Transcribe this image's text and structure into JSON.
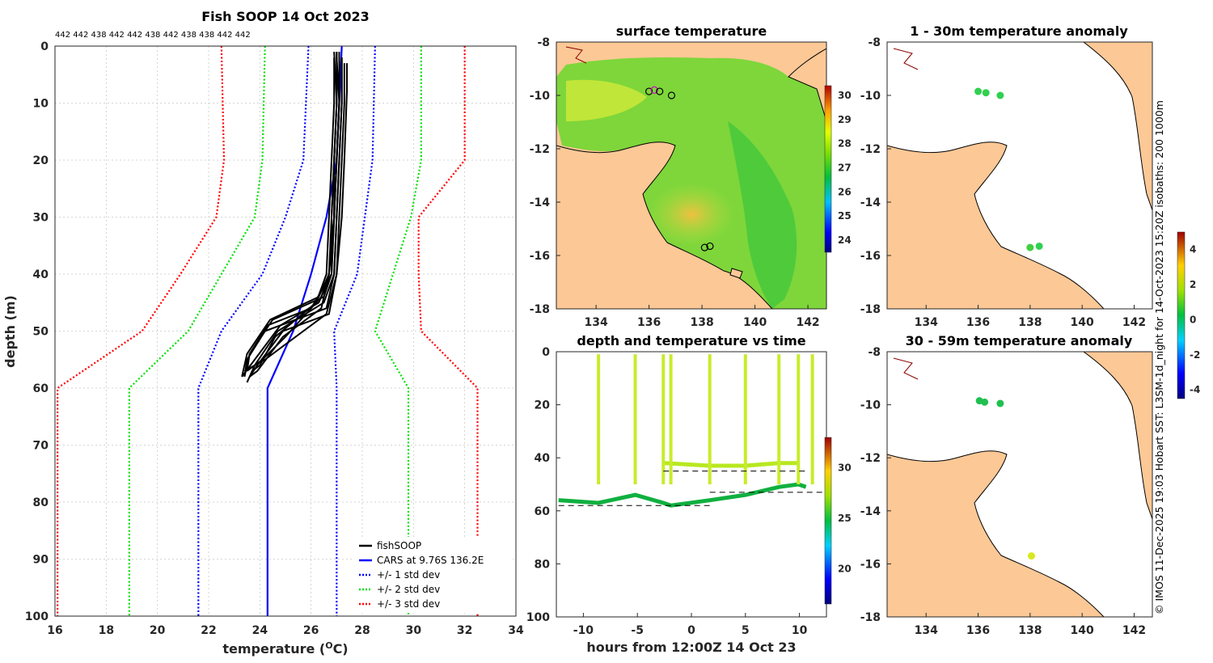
{
  "chart_data": [
    {
      "type": "line",
      "title": "Fish SOOP 14 Oct 2023",
      "vessel_ids": "442 442 438 442 442 438 442 438 438 442 442",
      "xlabel": "temperature (",
      "xlabel_unit": "O",
      "xlabel_tail": "C)",
      "ylabel": "depth (m)",
      "xlim": [
        16,
        34
      ],
      "ylim": [
        0,
        100
      ],
      "y_reversed": true,
      "xticks": [
        "16",
        "18",
        "20",
        "22",
        "24",
        "26",
        "28",
        "30",
        "32",
        "34"
      ],
      "yticks": [
        "0",
        "10",
        "20",
        "30",
        "40",
        "50",
        "60",
        "70",
        "80",
        "90",
        "100"
      ],
      "legend": [
        "fishSOOP",
        "CARS at 9.76S 136.2E",
        "+/- 1 std dev",
        "+/- 2 std dev",
        "+/- 3 std dev"
      ],
      "series": [
        {
          "name": "CARS at 9.76S 136.2E",
          "color": "#0000ff",
          "x": [
            27.2,
            27.0,
            26.6,
            26.0,
            25.3,
            24.3,
            24.3
          ],
          "y": [
            0,
            20,
            30,
            40,
            50,
            60,
            100
          ]
        },
        {
          "name": "-1 std dev",
          "color": "#0000ff",
          "dotted": true,
          "x": [
            25.9,
            25.7,
            25.0,
            24.1,
            22.5,
            21.6,
            21.6
          ],
          "y": [
            0,
            20,
            30,
            40,
            50,
            60,
            100
          ]
        },
        {
          "name": "+1 std dev",
          "color": "#0000ff",
          "dotted": true,
          "x": [
            28.5,
            28.4,
            28.1,
            27.8,
            26.9,
            27.0,
            27.0
          ],
          "y": [
            0,
            20,
            30,
            40,
            50,
            60,
            100
          ]
        },
        {
          "name": "-2 std dev",
          "color": "#00e000",
          "dotted": true,
          "x": [
            24.2,
            24.1,
            23.8,
            22.5,
            21.2,
            18.9,
            18.9
          ],
          "y": [
            0,
            20,
            30,
            40,
            50,
            60,
            100
          ]
        },
        {
          "name": "+2 std dev",
          "color": "#00e000",
          "dotted": true,
          "x": [
            30.3,
            30.3,
            29.9,
            29.2,
            28.5,
            29.8,
            29.8
          ],
          "y": [
            0,
            20,
            30,
            40,
            50,
            60,
            100
          ]
        },
        {
          "name": "-3 std dev",
          "color": "#ff0000",
          "dotted": true,
          "x": [
            22.5,
            22.6,
            22.3,
            20.9,
            19.4,
            16.1,
            16.1
          ],
          "y": [
            0,
            20,
            30,
            40,
            50,
            60,
            100
          ]
        },
        {
          "name": "+3 std dev",
          "color": "#ff0000",
          "dotted": true,
          "x": [
            32.0,
            32.0,
            30.2,
            30.2,
            30.3,
            32.5,
            32.5
          ],
          "y": [
            0,
            20,
            30,
            40,
            50,
            60,
            100
          ]
        }
      ],
      "fishsoop_profiles": [
        {
          "x": [
            27.0,
            27.0,
            26.9,
            26.8,
            26.8,
            26.5,
            24.5,
            23.6,
            23.5
          ],
          "y": [
            1,
            10,
            20,
            30,
            40,
            44,
            48,
            54,
            57
          ]
        },
        {
          "x": [
            27.1,
            27.1,
            27.0,
            26.9,
            26.8,
            26.3,
            24.8,
            23.8,
            23.3
          ],
          "y": [
            1,
            10,
            20,
            30,
            40,
            45,
            49,
            55,
            58
          ]
        },
        {
          "x": [
            27.2,
            27.2,
            27.1,
            27.0,
            26.9,
            26.6,
            24.2,
            23.5,
            23.4
          ],
          "y": [
            2,
            10,
            20,
            30,
            40,
            46,
            50,
            55,
            58
          ]
        },
        {
          "x": [
            26.9,
            26.9,
            26.8,
            26.7,
            26.6,
            26.2,
            24.6,
            24.0,
            23.7
          ],
          "y": [
            2,
            10,
            20,
            30,
            40,
            45,
            51,
            56,
            57
          ]
        },
        {
          "x": [
            27.3,
            27.3,
            27.2,
            27.1,
            27.0,
            26.7,
            24.9,
            23.9,
            23.6
          ],
          "y": [
            3,
            10,
            20,
            30,
            40,
            47,
            50,
            56,
            58
          ]
        },
        {
          "x": [
            27.0,
            27.0,
            26.9,
            26.9,
            26.7,
            26.4,
            25.0,
            24.1,
            23.5
          ],
          "y": [
            1,
            10,
            20,
            30,
            40,
            44,
            51,
            55,
            57
          ]
        },
        {
          "x": [
            27.1,
            27.1,
            27.0,
            26.9,
            26.8,
            26.0,
            24.3,
            23.6,
            23.4
          ],
          "y": [
            1,
            10,
            20,
            30,
            40,
            46,
            49,
            54,
            58
          ]
        },
        {
          "x": [
            27.2,
            27.2,
            27.1,
            27.0,
            26.9,
            26.5,
            24.7,
            23.8,
            23.5
          ],
          "y": [
            2,
            10,
            20,
            30,
            40,
            45,
            50,
            56,
            59
          ]
        },
        {
          "x": [
            27.4,
            27.4,
            27.3,
            27.2,
            27.0,
            26.6,
            25.1,
            24.2,
            23.4
          ],
          "y": [
            3,
            8,
            20,
            30,
            40,
            47,
            52,
            55,
            57
          ]
        },
        {
          "x": [
            26.9,
            27.0,
            26.9,
            26.8,
            26.7,
            26.3,
            24.4,
            23.5,
            23.3
          ],
          "y": [
            1,
            10,
            20,
            30,
            40,
            44,
            48,
            54,
            58
          ]
        },
        {
          "x": [
            27.0,
            27.1,
            27.0,
            26.9,
            26.7,
            26.4,
            24.9,
            23.9,
            23.6
          ],
          "y": [
            2,
            10,
            20,
            30,
            40,
            46,
            51,
            57,
            58
          ]
        }
      ]
    },
    {
      "type": "heatmap",
      "title": "surface temperature",
      "xticks": [
        "134",
        "136",
        "138",
        "140",
        "142"
      ],
      "yticks": [
        "-8",
        "-10",
        "-12",
        "-14",
        "-16",
        "-18"
      ],
      "xlim": [
        132.5,
        142.7
      ],
      "ylim": [
        -18,
        -8
      ],
      "colorbar_ticks": [
        "24",
        "25",
        "26",
        "27",
        "28",
        "29",
        "30"
      ],
      "colorbar_range": [
        23.5,
        30.4
      ],
      "stations": [
        {
          "lon": 136.0,
          "lat": -9.85
        },
        {
          "lon": 136.2,
          "lat": -9.8
        },
        {
          "lon": 136.4,
          "lat": -9.85
        },
        {
          "lon": 136.85,
          "lat": -10.0
        },
        {
          "lon": 138.1,
          "lat": -15.7
        },
        {
          "lon": 138.3,
          "lat": -15.65
        }
      ]
    },
    {
      "type": "scatter",
      "title": "depth and temperature vs time",
      "xlabel": "hours from 12:00Z 14 Oct 23",
      "xticks": [
        "-10",
        "-5",
        "0",
        "5",
        "10"
      ],
      "yticks": [
        "0",
        "20",
        "40",
        "60",
        "80",
        "100"
      ],
      "xlim": [
        -12.5,
        12.5
      ],
      "ylim": [
        0,
        100
      ],
      "y_reversed": true,
      "colorbar_ticks": [
        "20",
        "25",
        "30"
      ],
      "colorbar_range": [
        16.5,
        33
      ],
      "casts_hours": [
        -8.6,
        -5.2,
        -2.6,
        -1.9,
        1.7,
        5.0,
        8.1,
        9.9,
        11.2
      ],
      "dashed_segments": [
        {
          "x": [
            -2.6,
            10.5
          ],
          "y": [
            45,
            45
          ]
        },
        {
          "x": [
            1.7,
            12.5
          ],
          "y": [
            53,
            53
          ]
        },
        {
          "x": [
            -12.3,
            1.7
          ],
          "y": [
            58,
            58
          ]
        }
      ]
    },
    {
      "type": "scatter",
      "title": "1 - 30m temperature anomaly",
      "xticks": [
        "134",
        "136",
        "138",
        "140",
        "142"
      ],
      "yticks": [
        "-8",
        "-10",
        "-12",
        "-14",
        "-16",
        "-18"
      ],
      "colorbar_ticks": [
        "4",
        "2",
        "0",
        "-2",
        "-4"
      ],
      "colorbar_range": [
        -4.5,
        5
      ],
      "points": [
        {
          "lon": 136.0,
          "lat": -9.85,
          "v": 0.5
        },
        {
          "lon": 136.3,
          "lat": -9.9,
          "v": 0.5
        },
        {
          "lon": 136.85,
          "lat": -10.0,
          "v": 0.5
        },
        {
          "lon": 138.0,
          "lat": -15.7,
          "v": 0.8
        },
        {
          "lon": 138.35,
          "lat": -15.65,
          "v": 0.6
        }
      ]
    },
    {
      "type": "scatter",
      "title": "30 - 59m temperature anomaly",
      "xticks": [
        "134",
        "136",
        "138",
        "140",
        "142"
      ],
      "yticks": [
        "-8",
        "-10",
        "-12",
        "-14",
        "-16",
        "-18"
      ],
      "points": [
        {
          "lon": 136.05,
          "lat": -9.85,
          "v": 0.3
        },
        {
          "lon": 136.25,
          "lat": -9.9,
          "v": 0.3
        },
        {
          "lon": 136.85,
          "lat": -9.95,
          "v": 0.3
        },
        {
          "lon": 138.05,
          "lat": -15.7,
          "v": 2.0
        }
      ]
    }
  ],
  "credit": "© IMOS 11-Dec-2025 19:03 Hobart SST: L3SM-1d_night for 14-Oct-2023 15:20Z isobaths: 200  1000m",
  "colors": {
    "land": "#fcc896",
    "profile": "#000000",
    "cars": "#0000ff"
  }
}
